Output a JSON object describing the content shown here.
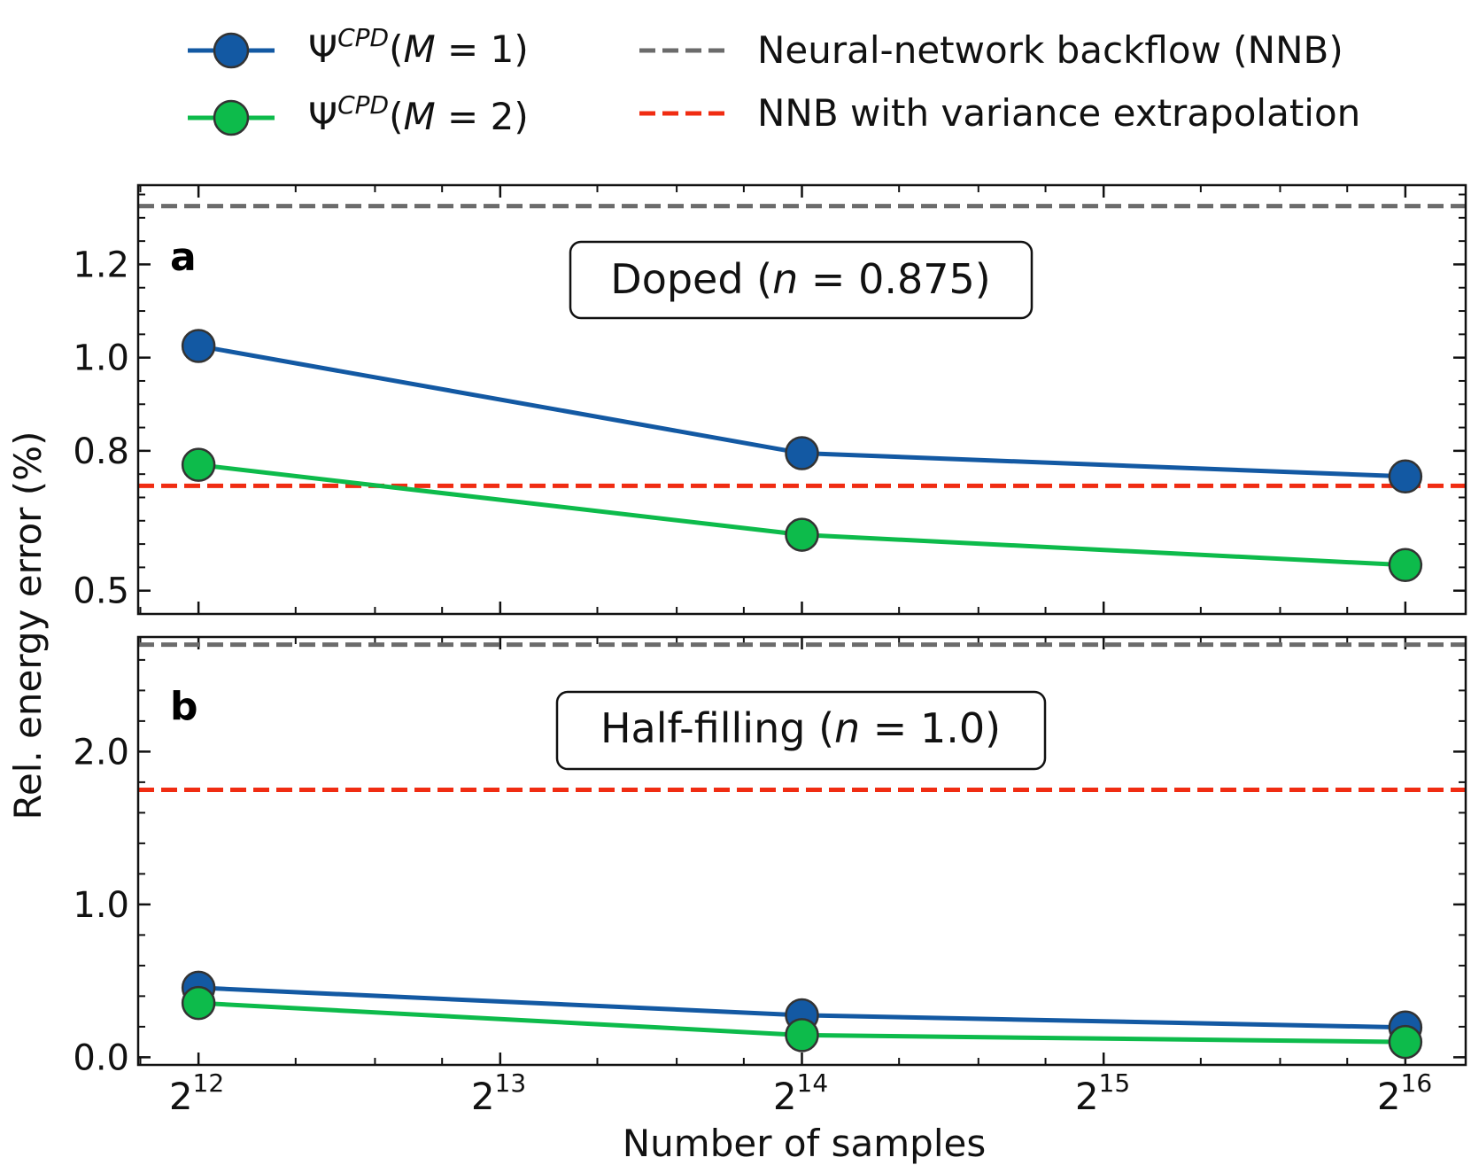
{
  "chart_data": [
    {
      "type": "line",
      "panel": "a",
      "annotation": {
        "prefix": "Doped (",
        "var": "n",
        "eq": " = 0.875)"
      },
      "xlabel": "Number of samples",
      "ylabel": "Rel. energy error (%)",
      "x": [
        4096,
        16384,
        65536
      ],
      "xscale": "log2",
      "xlim_exp": [
        11.8,
        16.2
      ],
      "ylim": [
        0.45,
        1.37
      ],
      "yticks": [
        0.5,
        0.8,
        1.0,
        1.2
      ],
      "ytick_labels": [
        "0.5",
        "0.8",
        "1.0",
        "1.2"
      ],
      "series": [
        {
          "name": "Ψ^CPD(M = 1)",
          "values": [
            1.025,
            0.795,
            0.745
          ],
          "color": "#1359a3"
        },
        {
          "name": "Ψ^CPD(M = 2)",
          "values": [
            0.77,
            0.62,
            0.555
          ],
          "color": "#0dbb4b"
        }
      ],
      "hlines": [
        {
          "name": "Neural-network backflow (NNB)",
          "y": 1.325,
          "color": "#6b6b6b"
        },
        {
          "name": "NNB with variance extrapolation",
          "y": 0.725,
          "color": "#f02c12"
        }
      ]
    },
    {
      "type": "line",
      "panel": "b",
      "annotation": {
        "prefix": "Half-filling (",
        "var": "n",
        "eq": " = 1.0)"
      },
      "xlabel": "Number of samples",
      "ylabel": "Rel. energy error (%)",
      "x": [
        4096,
        16384,
        65536
      ],
      "xscale": "log2",
      "xlim_exp": [
        11.8,
        16.2
      ],
      "ylim": [
        -0.05,
        2.75
      ],
      "yticks": [
        0.0,
        1.0,
        2.0
      ],
      "ytick_labels": [
        "0.0",
        "1.0",
        "2.0"
      ],
      "series": [
        {
          "name": "Ψ^CPD(M = 1)",
          "values": [
            0.455,
            0.275,
            0.195
          ],
          "color": "#1359a3"
        },
        {
          "name": "Ψ^CPD(M = 2)",
          "values": [
            0.355,
            0.145,
            0.1
          ],
          "color": "#0dbb4b"
        }
      ],
      "hlines": [
        {
          "name": "Neural-network backflow (NNB)",
          "y": 2.7,
          "color": "#6b6b6b"
        },
        {
          "name": "NNB with variance extrapolation",
          "y": 1.75,
          "color": "#f02c12"
        }
      ]
    }
  ],
  "legend": [
    {
      "symbol": "Ψ",
      "sup": "CPD",
      "arg_open": "(",
      "arg_var": "M",
      "arg_rest": " = 1)",
      "kind": "marker-line",
      "color": "#1359a3"
    },
    {
      "symbol": "Ψ",
      "sup": "CPD",
      "arg_open": "(",
      "arg_var": "M",
      "arg_rest": " = 2)",
      "kind": "marker-line",
      "color": "#0dbb4b"
    },
    {
      "label": "Neural-network backflow (NNB)",
      "kind": "dashed",
      "color": "#6b6b6b"
    },
    {
      "label": "NNB with variance extrapolation",
      "kind": "dashed",
      "color": "#f02c12"
    }
  ],
  "xtick_labels": [
    {
      "base": "2",
      "exp": "12"
    },
    {
      "base": "2",
      "exp": "13"
    },
    {
      "base": "2",
      "exp": "14"
    },
    {
      "base": "2",
      "exp": "15"
    },
    {
      "base": "2",
      "exp": "16"
    }
  ]
}
